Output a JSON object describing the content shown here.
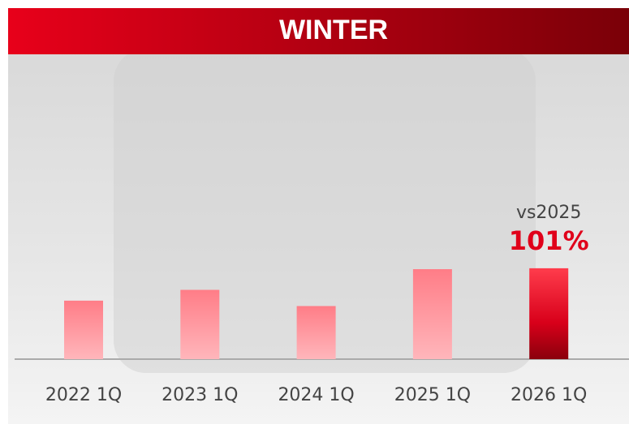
{
  "chart_data": {
    "type": "bar",
    "title": "WINTER",
    "categories": [
      "2022 1Q",
      "2023 1Q",
      "2024 1Q",
      "2025 1Q",
      "2026 1Q"
    ],
    "values": [
      65,
      77,
      59,
      100,
      101
    ],
    "value_labels": [
      null,
      null,
      null,
      null,
      "101%"
    ],
    "annotation": "vs2025",
    "colors": [
      "#ff8a92",
      "#ff8a92",
      "#ff8a92",
      "#ff8a92",
      "#e0001a"
    ],
    "ylim": [
      0,
      300
    ]
  }
}
